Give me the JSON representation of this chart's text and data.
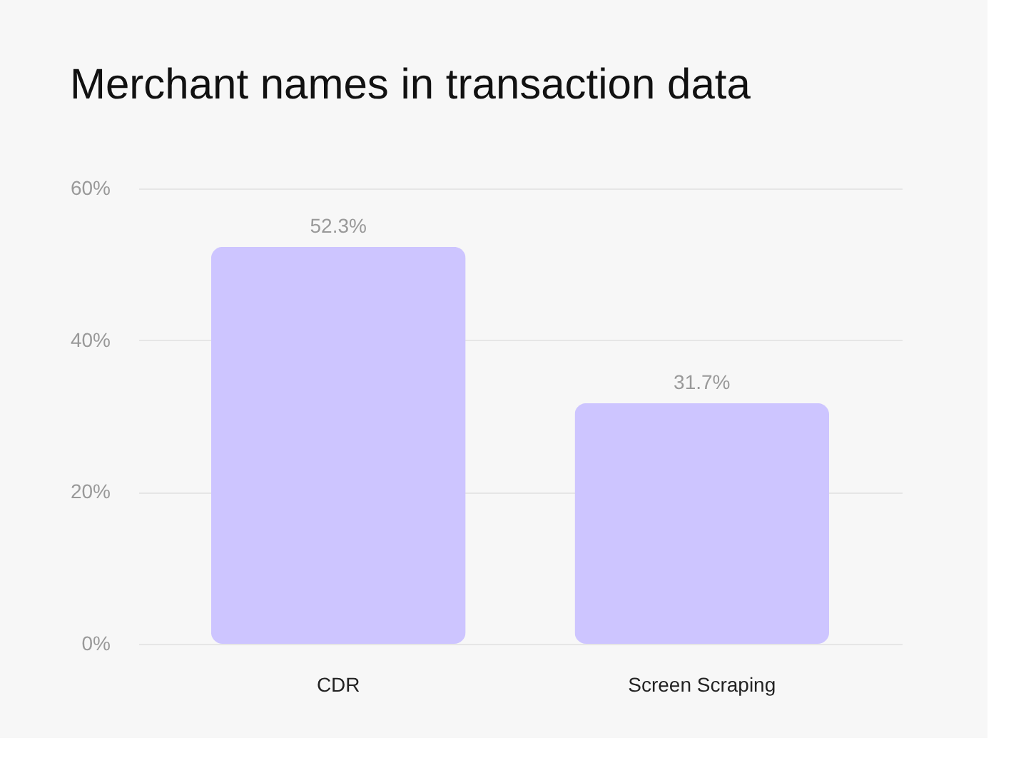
{
  "chart_data": {
    "type": "bar",
    "title": "Merchant names in transaction data",
    "categories": [
      "CDR",
      "Screen Scraping"
    ],
    "values": [
      52.3,
      31.7
    ],
    "value_labels": [
      "52.3%",
      "31.7%"
    ],
    "color": "#cdc5ff",
    "ylim": [
      0,
      60
    ],
    "yticks": [
      {
        "value": 0,
        "label": "0%"
      },
      {
        "value": 20,
        "label": "20%"
      },
      {
        "value": 40,
        "label": "40%"
      },
      {
        "value": 60,
        "label": "60%"
      }
    ],
    "grid": "y"
  }
}
